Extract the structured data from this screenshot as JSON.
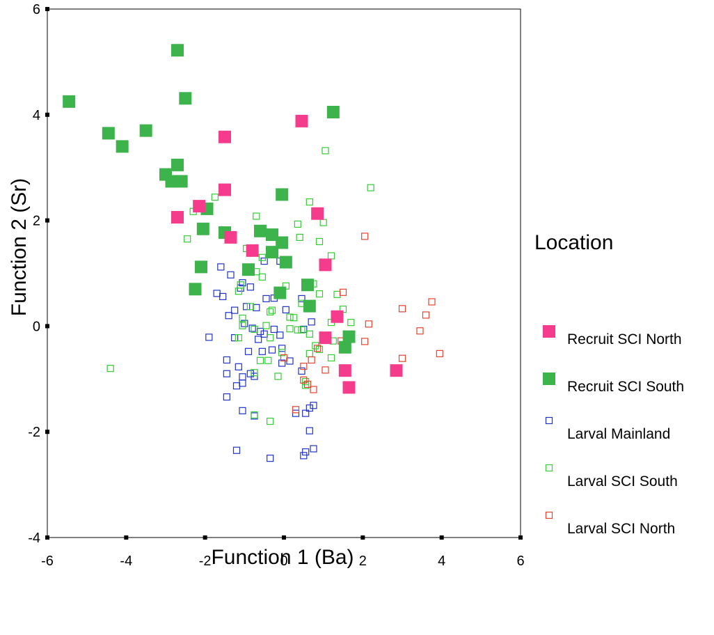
{
  "chart_data": {
    "type": "scatter",
    "xlabel": "Function 1 (Ba)",
    "ylabel": "Function 2 (Sr)",
    "xlim": [
      -6,
      6
    ],
    "ylim": [
      -4,
      6
    ],
    "xticks": [
      -6,
      -4,
      -2,
      0,
      2,
      4,
      6
    ],
    "yticks": [
      -4,
      -2,
      0,
      2,
      4,
      6
    ],
    "grid": false,
    "legend": {
      "title": "Location",
      "placement": "right"
    },
    "series": [
      {
        "name": "Recruit SCI North",
        "color": "#f53b8c",
        "marker": "filled-square-large",
        "points": [
          [
            0.45,
            3.88
          ],
          [
            -1.5,
            3.58
          ],
          [
            -1.5,
            2.58
          ],
          [
            -2.15,
            2.27
          ],
          [
            -2.7,
            2.06
          ],
          [
            -1.35,
            1.68
          ],
          [
            -0.8,
            1.43
          ],
          [
            0.85,
            2.13
          ],
          [
            1.05,
            1.16
          ],
          [
            1.35,
            0.18
          ],
          [
            1.05,
            -0.22
          ],
          [
            1.55,
            -0.84
          ],
          [
            1.65,
            -1.16
          ],
          [
            2.85,
            -0.84
          ]
        ]
      },
      {
        "name": "Recruit SCI South",
        "color": "#3cb44b",
        "marker": "filled-square-large",
        "points": [
          [
            -2.7,
            5.22
          ],
          [
            -5.45,
            4.25
          ],
          [
            -2.5,
            4.31
          ],
          [
            1.25,
            4.05
          ],
          [
            -4.45,
            3.65
          ],
          [
            -3.5,
            3.7
          ],
          [
            -4.1,
            3.4
          ],
          [
            -2.7,
            3.05
          ],
          [
            -3.0,
            2.87
          ],
          [
            -2.85,
            2.74
          ],
          [
            -2.6,
            2.74
          ],
          [
            -0.05,
            2.49
          ],
          [
            -1.95,
            2.22
          ],
          [
            -2.05,
            1.84
          ],
          [
            -1.5,
            1.77
          ],
          [
            -0.6,
            1.8
          ],
          [
            -0.3,
            1.73
          ],
          [
            -0.05,
            1.58
          ],
          [
            -0.3,
            1.4
          ],
          [
            0.05,
            1.21
          ],
          [
            -0.9,
            1.07
          ],
          [
            -2.1,
            1.12
          ],
          [
            -2.25,
            0.7
          ],
          [
            -0.1,
            0.63
          ],
          [
            0.6,
            0.78
          ],
          [
            0.65,
            0.38
          ],
          [
            1.55,
            -0.4
          ],
          [
            1.65,
            -0.2
          ]
        ]
      },
      {
        "name": "Larval Mainland",
        "color": "#1f33c8",
        "marker": "open-square-small",
        "points": [
          [
            -1.6,
            1.12
          ],
          [
            -1.35,
            0.97
          ],
          [
            -0.5,
            1.23
          ],
          [
            -0.1,
            1.23
          ],
          [
            -1.05,
            0.82
          ],
          [
            -1.1,
            0.72
          ],
          [
            -0.85,
            0.74
          ],
          [
            -1.7,
            0.62
          ],
          [
            -1.55,
            0.56
          ],
          [
            -0.95,
            0.37
          ],
          [
            -0.7,
            0.35
          ],
          [
            -0.45,
            0.52
          ],
          [
            -0.25,
            0.53
          ],
          [
            0.45,
            0.52
          ],
          [
            -1.25,
            0.3
          ],
          [
            -1.4,
            0.2
          ],
          [
            0.05,
            0.31
          ],
          [
            0.7,
            0.08
          ],
          [
            -1.0,
            0.05
          ],
          [
            -0.8,
            -0.04
          ],
          [
            -0.6,
            -0.1
          ],
          [
            -0.25,
            -0.06
          ],
          [
            -0.5,
            -0.15
          ],
          [
            -0.1,
            -0.17
          ],
          [
            0.5,
            -0.06
          ],
          [
            -1.25,
            -0.22
          ],
          [
            -1.9,
            -0.21
          ],
          [
            -0.65,
            -0.25
          ],
          [
            -0.05,
            -0.42
          ],
          [
            -1.45,
            -0.64
          ],
          [
            -0.9,
            -0.48
          ],
          [
            -0.55,
            -0.48
          ],
          [
            -0.3,
            -0.45
          ],
          [
            0.15,
            -0.66
          ],
          [
            -0.05,
            -0.7
          ],
          [
            -1.15,
            -0.77
          ],
          [
            -1.45,
            -0.9
          ],
          [
            -0.85,
            -0.9
          ],
          [
            0.45,
            -0.85
          ],
          [
            -1.05,
            -0.96
          ],
          [
            -0.75,
            -0.95
          ],
          [
            -1.05,
            -1.08
          ],
          [
            -1.2,
            -1.13
          ],
          [
            -1.45,
            -1.34
          ],
          [
            0.75,
            -1.5
          ],
          [
            0.65,
            -1.55
          ],
          [
            -1.05,
            -1.6
          ],
          [
            -0.75,
            -1.7
          ],
          [
            0.3,
            -1.65
          ],
          [
            0.55,
            -1.65
          ],
          [
            0.65,
            -1.98
          ],
          [
            -1.2,
            -2.35
          ],
          [
            0.75,
            -2.32
          ],
          [
            0.55,
            -2.38
          ],
          [
            0.5,
            -2.45
          ],
          [
            -0.35,
            -2.5
          ]
        ]
      },
      {
        "name": "Larval SCI South",
        "color": "#33cc33",
        "marker": "open-square-small",
        "points": [
          [
            1.05,
            3.32
          ],
          [
            2.2,
            2.62
          ],
          [
            0.65,
            2.35
          ],
          [
            -1.75,
            2.44
          ],
          [
            -2.3,
            2.17
          ],
          [
            -0.7,
            2.08
          ],
          [
            0.35,
            1.93
          ],
          [
            1.0,
            1.96
          ],
          [
            -2.45,
            1.65
          ],
          [
            0.4,
            1.68
          ],
          [
            0.9,
            1.6
          ],
          [
            -0.95,
            1.47
          ],
          [
            -0.75,
            1.4
          ],
          [
            1.2,
            1.33
          ],
          [
            -0.55,
            1.3
          ],
          [
            -0.7,
            1.03
          ],
          [
            -0.55,
            0.93
          ],
          [
            0.05,
            0.76
          ],
          [
            0.75,
            0.8
          ],
          [
            -1.1,
            0.78
          ],
          [
            -1.15,
            0.66
          ],
          [
            0.9,
            0.61
          ],
          [
            -0.85,
            0.37
          ],
          [
            0.45,
            0.43
          ],
          [
            1.35,
            0.6
          ],
          [
            -0.3,
            0.3
          ],
          [
            -0.35,
            0.27
          ],
          [
            1.5,
            0.32
          ],
          [
            -1.05,
            0.15
          ],
          [
            0.15,
            0.17
          ],
          [
            0.25,
            0.16
          ],
          [
            1.35,
            0.17
          ],
          [
            1.2,
            0.07
          ],
          [
            -1.05,
            0.01
          ],
          [
            -0.45,
            0.01
          ],
          [
            0.15,
            -0.05
          ],
          [
            0.45,
            -0.07
          ],
          [
            1.7,
            0.07
          ],
          [
            -0.75,
            -0.06
          ],
          [
            -1.15,
            -0.22
          ],
          [
            -0.35,
            -0.22
          ],
          [
            0.35,
            -0.07
          ],
          [
            0.65,
            -0.15
          ],
          [
            1.25,
            -0.28
          ],
          [
            0.8,
            -0.37
          ],
          [
            0.9,
            -0.44
          ],
          [
            -0.05,
            -0.5
          ],
          [
            0.65,
            -0.52
          ],
          [
            1.2,
            -0.6
          ],
          [
            -0.4,
            -0.65
          ],
          [
            -0.6,
            -0.65
          ],
          [
            -0.75,
            -0.88
          ],
          [
            -0.15,
            -0.95
          ],
          [
            0.55,
            -1.05
          ],
          [
            0.55,
            -1.12
          ],
          [
            -0.75,
            -1.68
          ],
          [
            -0.35,
            -1.8
          ],
          [
            -4.4,
            -0.8
          ]
        ]
      },
      {
        "name": "Larval SCI North",
        "color": "#e8412c",
        "marker": "open-square-small",
        "points": [
          [
            2.05,
            1.7
          ],
          [
            1.5,
            0.64
          ],
          [
            3.75,
            0.46
          ],
          [
            3.0,
            0.33
          ],
          [
            3.6,
            0.21
          ],
          [
            2.15,
            0.04
          ],
          [
            3.45,
            -0.09
          ],
          [
            2.05,
            -0.29
          ],
          [
            1.45,
            -0.28
          ],
          [
            3.0,
            -0.61
          ],
          [
            3.95,
            -0.52
          ],
          [
            0.0,
            -0.6
          ],
          [
            0.85,
            -0.42
          ],
          [
            0.5,
            -0.76
          ],
          [
            0.7,
            -0.64
          ],
          [
            1.05,
            -0.83
          ],
          [
            0.5,
            -1.02
          ],
          [
            0.6,
            -1.1
          ],
          [
            0.75,
            -1.2
          ],
          [
            0.3,
            -1.58
          ]
        ]
      }
    ]
  }
}
